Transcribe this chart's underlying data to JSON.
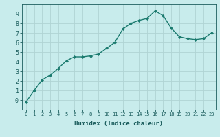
{
  "x": [
    0,
    1,
    2,
    3,
    4,
    5,
    6,
    7,
    8,
    9,
    10,
    11,
    12,
    13,
    14,
    15,
    16,
    17,
    18,
    19,
    20,
    21,
    22,
    23
  ],
  "y": [
    -0.2,
    1.0,
    2.1,
    2.6,
    3.3,
    4.1,
    4.5,
    4.5,
    4.6,
    4.8,
    5.4,
    6.0,
    7.4,
    8.0,
    8.3,
    8.5,
    9.3,
    8.8,
    7.5,
    6.6,
    6.4,
    6.3,
    6.4,
    7.0
  ],
  "line_color": "#1a7a6e",
  "bg_color": "#c8ecec",
  "grid_color": "#b0d4d4",
  "tick_color": "#1a5c5c",
  "xlabel": "Humidex (Indice chaleur)",
  "ylim": [
    -1,
    10
  ],
  "xlim": [
    -0.5,
    23.5
  ],
  "yticks": [
    0,
    1,
    2,
    3,
    4,
    5,
    6,
    7,
    8,
    9
  ],
  "ytick_labels": [
    "-0",
    "1",
    "2",
    "3",
    "4",
    "5",
    "6",
    "7",
    "8",
    "9"
  ],
  "xticks": [
    0,
    1,
    2,
    3,
    4,
    5,
    6,
    7,
    8,
    9,
    10,
    11,
    12,
    13,
    14,
    15,
    16,
    17,
    18,
    19,
    20,
    21,
    22,
    23
  ],
  "marker": "D",
  "marker_size": 2.0,
  "line_width": 1.0,
  "xlabel_fontsize": 6.5,
  "tick_fontsize_x": 5.0,
  "tick_fontsize_y": 6.0
}
